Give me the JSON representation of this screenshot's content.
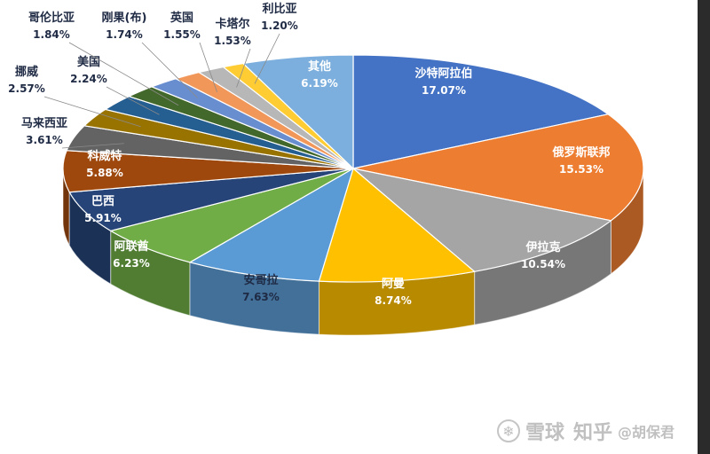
{
  "chart_data": {
    "type": "pie",
    "style": "3d-exploded",
    "title": "",
    "start": "top, clockwise",
    "slices": [
      {
        "name": "沙特阿拉伯",
        "pct_label": "17.07%",
        "value": 17.07,
        "color": "#4472C4",
        "label_color": "#ffffff"
      },
      {
        "name": "俄罗斯联邦",
        "pct_label": "15.53%",
        "value": 15.53,
        "color": "#ED7D31",
        "label_color": "#ffffff"
      },
      {
        "name": "伊拉克",
        "pct_label": "10.54%",
        "value": 10.54,
        "color": "#A5A5A5",
        "label_color": "#ffffff"
      },
      {
        "name": "阿曼",
        "pct_label": "8.74%",
        "value": 8.74,
        "color": "#FFC000",
        "label_color": "#ffffff"
      },
      {
        "name": "安哥拉",
        "pct_label": "7.63%",
        "value": 7.63,
        "color": "#5B9BD5",
        "label_color": "#1f2a44"
      },
      {
        "name": "阿联酋",
        "pct_label": "6.23%",
        "value": 6.23,
        "color": "#70AD47",
        "label_color": "#ffffff"
      },
      {
        "name": "巴西",
        "pct_label": "5.91%",
        "value": 5.91,
        "color": "#264478",
        "label_color": "#ffffff"
      },
      {
        "name": "科威特",
        "pct_label": "5.88%",
        "value": 5.88,
        "color": "#9E480E",
        "label_color": "#ffffff"
      },
      {
        "name": "马来西亚",
        "pct_label": "3.61%",
        "value": 3.61,
        "color": "#636363",
        "label_color": "#1f2a44"
      },
      {
        "name": "挪威",
        "pct_label": "2.57%",
        "value": 2.57,
        "color": "#997300",
        "label_color": "#1f2a44"
      },
      {
        "name": "美国",
        "pct_label": "2.24%",
        "value": 2.24,
        "color": "#255E91",
        "label_color": "#1f2a44"
      },
      {
        "name": "哥伦比亚",
        "pct_label": "1.84%",
        "value": 1.84,
        "color": "#43682B",
        "label_color": "#1f2a44"
      },
      {
        "name": "刚果(布)",
        "pct_label": "1.74%",
        "value": 1.74,
        "color": "#698ED0",
        "label_color": "#1f2a44"
      },
      {
        "name": "英国",
        "pct_label": "1.55%",
        "value": 1.55,
        "color": "#F1975A",
        "label_color": "#1f2a44"
      },
      {
        "name": "卡塔尔",
        "pct_label": "1.53%",
        "value": 1.53,
        "color": "#B7B7B7",
        "label_color": "#1f2a44"
      },
      {
        "name": "利比亚",
        "pct_label": "1.20%",
        "value": 1.2,
        "color": "#FFCD33",
        "label_color": "#1f2a44"
      },
      {
        "name": "其他",
        "pct_label": "6.19%",
        "value": 6.19,
        "color": "#7CAFDD",
        "label_color": "#ffffff"
      }
    ]
  },
  "watermark": {
    "icon": "snowball-icon",
    "site": "雪球",
    "zhihu": "知乎",
    "handle": "@胡保君"
  }
}
